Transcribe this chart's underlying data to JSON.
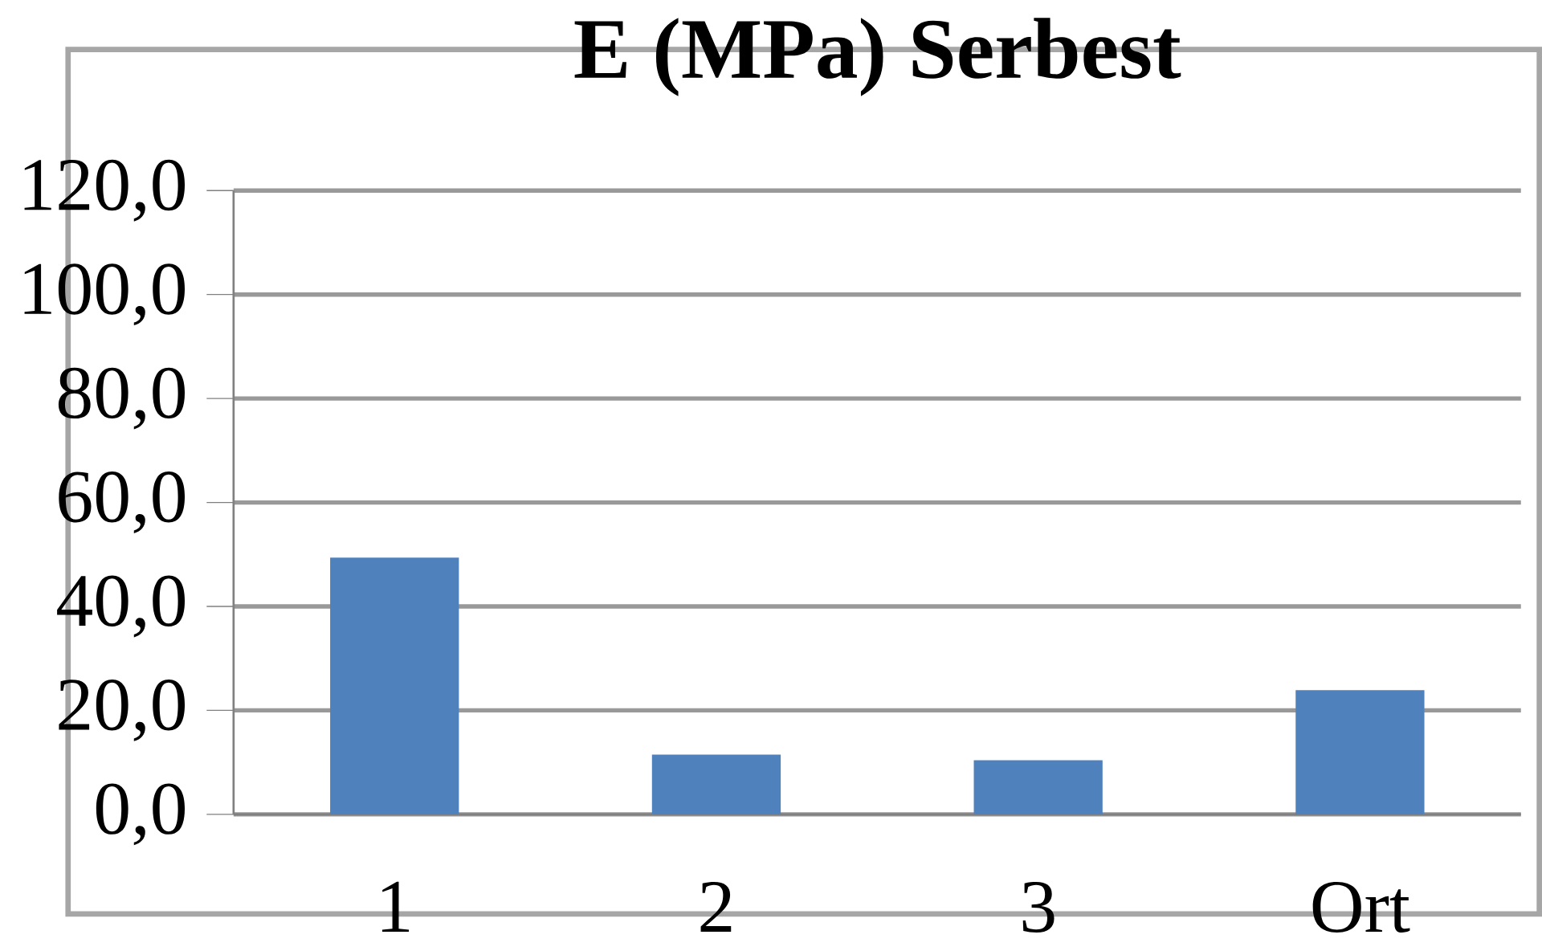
{
  "chart_data": {
    "type": "bar",
    "title": "E (MPa) Serbest",
    "categories": [
      "1",
      "2",
      "3",
      "Ort"
    ],
    "values": [
      49.4,
      11.5,
      10.4,
      23.9
    ],
    "color": "#4f81bd",
    "ylim": [
      0,
      120
    ],
    "yticks": [
      {
        "value": 0,
        "label": "0,0"
      },
      {
        "value": 20,
        "label": "20,0"
      },
      {
        "value": 40,
        "label": "40,0"
      },
      {
        "value": 60,
        "label": "60,0"
      },
      {
        "value": 80,
        "label": "80,0"
      },
      {
        "value": 100,
        "label": "100,0"
      },
      {
        "value": 120,
        "label": "120,0"
      }
    ],
    "grid": "y"
  }
}
